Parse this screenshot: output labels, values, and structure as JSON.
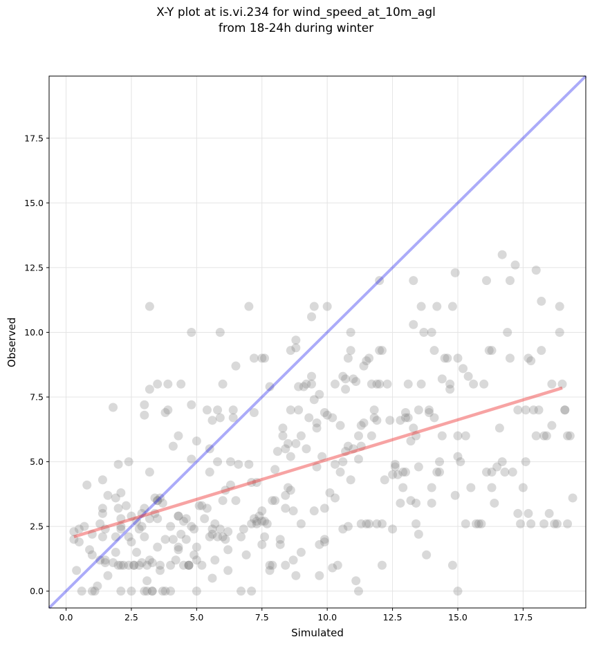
{
  "chart_data": {
    "type": "scatter",
    "title_lines": [
      "X-Y plot at is.vi.234 for wind_speed_at_10m_agl",
      "from 18-24h during winter"
    ],
    "xlabel": "Simulated",
    "ylabel": "Observed",
    "xlim": [
      -0.65,
      19.9
    ],
    "ylim": [
      -0.65,
      19.9
    ],
    "xticks": [
      0.0,
      2.5,
      5.0,
      7.5,
      10.0,
      12.5,
      15.0,
      17.5
    ],
    "yticks": [
      0.0,
      2.5,
      5.0,
      7.5,
      10.0,
      12.5,
      15.0,
      17.5
    ],
    "xtick_labels": [
      "0.0",
      "2.5",
      "5.0",
      "7.5",
      "10.0",
      "12.5",
      "15.0",
      "17.5"
    ],
    "ytick_labels": [
      "0.0",
      "2.5",
      "5.0",
      "7.5",
      "10.0",
      "12.5",
      "15.0",
      "17.5"
    ],
    "grid": true,
    "colors": {
      "points": "#808080",
      "identity_line": "#0000ee",
      "fit_line": "#ee3333"
    },
    "identity_line": {
      "x": [
        -0.65,
        19.9
      ],
      "y": [
        -0.65,
        19.9
      ]
    },
    "fit_line": {
      "x": [
        0.3,
        19.0
      ],
      "y": [
        2.1,
        7.85
      ]
    },
    "points": [
      [
        0.3,
        2.3
      ],
      [
        0.3,
        2.0
      ],
      [
        0.4,
        0.8
      ],
      [
        0.6,
        0.0
      ],
      [
        0.5,
        1.9
      ],
      [
        0.5,
        2.4
      ],
      [
        0.7,
        2.5
      ],
      [
        0.8,
        4.1
      ],
      [
        0.9,
        1.6
      ],
      [
        1.0,
        1.4
      ],
      [
        1.0,
        0.0
      ],
      [
        1.1,
        0.0
      ],
      [
        1.0,
        2.2
      ],
      [
        1.2,
        0.2
      ],
      [
        1.3,
        1.2
      ],
      [
        1.4,
        2.1
      ],
      [
        1.3,
        2.6
      ],
      [
        1.4,
        3.0
      ],
      [
        1.4,
        3.2
      ],
      [
        1.4,
        4.3
      ],
      [
        1.5,
        1.2
      ],
      [
        1.5,
        1.1
      ],
      [
        1.5,
        2.4
      ],
      [
        1.6,
        0.6
      ],
      [
        1.6,
        3.7
      ],
      [
        1.8,
        1.1
      ],
      [
        1.8,
        7.1
      ],
      [
        1.9,
        3.6
      ],
      [
        1.9,
        2.1
      ],
      [
        1.9,
        1.5
      ],
      [
        2.0,
        3.2
      ],
      [
        2.0,
        1.0
      ],
      [
        2.0,
        4.9
      ],
      [
        2.1,
        2.5
      ],
      [
        2.1,
        2.4
      ],
      [
        2.1,
        1.0
      ],
      [
        2.1,
        2.8
      ],
      [
        2.1,
        0.0
      ],
      [
        2.1,
        3.8
      ],
      [
        2.2,
        1.0
      ],
      [
        2.3,
        3.3
      ],
      [
        2.4,
        2.1
      ],
      [
        2.4,
        5.0
      ],
      [
        2.4,
        1.0
      ],
      [
        2.5,
        0.0
      ],
      [
        2.5,
        1.9
      ],
      [
        2.5,
        2.9
      ],
      [
        2.6,
        1.0
      ],
      [
        2.6,
        1.0
      ],
      [
        2.7,
        2.7
      ],
      [
        2.7,
        1.5
      ],
      [
        2.8,
        2.4
      ],
      [
        2.8,
        1.0
      ],
      [
        2.9,
        2.5
      ],
      [
        2.9,
        3.0
      ],
      [
        2.9,
        1.1
      ],
      [
        3.0,
        0.0
      ],
      [
        3.0,
        2.1
      ],
      [
        3.0,
        3.2
      ],
      [
        3.0,
        7.2
      ],
      [
        3.0,
        6.8
      ],
      [
        3.1,
        0.4
      ],
      [
        3.1,
        1.0
      ],
      [
        3.1,
        0.0
      ],
      [
        3.2,
        2.8
      ],
      [
        3.2,
        7.8
      ],
      [
        3.2,
        4.6
      ],
      [
        3.2,
        1.2
      ],
      [
        3.2,
        11.0
      ],
      [
        3.3,
        0.0
      ],
      [
        3.3,
        1.1
      ],
      [
        3.3,
        0.0
      ],
      [
        3.4,
        3.6
      ],
      [
        3.4,
        3.0
      ],
      [
        3.5,
        1.7
      ],
      [
        3.5,
        8.0
      ],
      [
        3.5,
        3.5
      ],
      [
        3.5,
        2.8
      ],
      [
        3.5,
        3.5
      ],
      [
        3.6,
        1.0
      ],
      [
        3.6,
        0.8
      ],
      [
        3.6,
        3.6
      ],
      [
        3.7,
        0.0
      ],
      [
        3.7,
        3.4
      ],
      [
        3.8,
        6.9
      ],
      [
        3.8,
        2.0
      ],
      [
        3.8,
        0.0
      ],
      [
        3.9,
        7.0
      ],
      [
        3.9,
        8.0
      ],
      [
        4.0,
        1.0
      ],
      [
        4.0,
        2.5
      ],
      [
        4.0,
        0.0
      ],
      [
        4.1,
        5.6
      ],
      [
        4.1,
        2.0
      ],
      [
        4.2,
        1.2
      ],
      [
        4.3,
        2.9
      ],
      [
        4.3,
        6.0
      ],
      [
        4.3,
        1.6
      ],
      [
        4.3,
        1.7
      ],
      [
        4.3,
        2.9
      ],
      [
        4.4,
        8.0
      ],
      [
        4.4,
        2.2
      ],
      [
        4.5,
        1.0
      ],
      [
        4.5,
        2.7
      ],
      [
        4.6,
        2.0
      ],
      [
        4.6,
        2.8
      ],
      [
        4.7,
        1.0
      ],
      [
        4.7,
        1.0
      ],
      [
        4.7,
        1.0
      ],
      [
        4.8,
        2.5
      ],
      [
        4.8,
        5.1
      ],
      [
        4.8,
        7.2
      ],
      [
        4.8,
        10.0
      ],
      [
        4.9,
        2.4
      ],
      [
        4.9,
        1.4
      ],
      [
        5.0,
        1.7
      ],
      [
        5.0,
        0.0
      ],
      [
        5.0,
        1.2
      ],
      [
        5.0,
        5.8
      ],
      [
        5.1,
        3.3
      ],
      [
        5.2,
        1.0
      ],
      [
        5.2,
        3.3
      ],
      [
        5.3,
        2.8
      ],
      [
        5.4,
        7.0
      ],
      [
        5.4,
        3.2
      ],
      [
        5.5,
        5.5
      ],
      [
        5.5,
        2.1
      ],
      [
        5.5,
        4.6
      ],
      [
        5.6,
        6.6
      ],
      [
        5.6,
        2.2
      ],
      [
        5.6,
        0.5
      ],
      [
        5.6,
        2.4
      ],
      [
        5.7,
        1.2
      ],
      [
        5.7,
        2.6
      ],
      [
        5.8,
        2.1
      ],
      [
        5.8,
        5.0
      ],
      [
        5.8,
        7.0
      ],
      [
        5.9,
        6.7
      ],
      [
        5.9,
        2.4
      ],
      [
        5.9,
        10.0
      ],
      [
        6.0,
        8.0
      ],
      [
        6.0,
        2.1
      ],
      [
        6.0,
        3.5
      ],
      [
        6.1,
        3.9
      ],
      [
        6.1,
        2.0
      ],
      [
        6.2,
        2.3
      ],
      [
        6.2,
        0.8
      ],
      [
        6.2,
        1.6
      ],
      [
        6.3,
        5.0
      ],
      [
        6.3,
        4.1
      ],
      [
        6.4,
        7.0
      ],
      [
        6.4,
        6.7
      ],
      [
        6.5,
        8.7
      ],
      [
        6.5,
        3.5
      ],
      [
        6.6,
        4.9
      ],
      [
        6.7,
        0.0
      ],
      [
        6.7,
        2.1
      ],
      [
        6.8,
        2.4
      ],
      [
        6.9,
        1.4
      ],
      [
        7.0,
        11.0
      ],
      [
        7.0,
        4.9
      ],
      [
        7.1,
        0.0
      ],
      [
        7.1,
        4.2
      ],
      [
        7.1,
        2.6
      ],
      [
        7.2,
        6.9
      ],
      [
        7.2,
        9.0
      ],
      [
        7.2,
        2.8
      ],
      [
        7.3,
        4.2
      ],
      [
        7.3,
        2.7
      ],
      [
        7.3,
        2.6
      ],
      [
        7.4,
        2.9
      ],
      [
        7.5,
        3.1
      ],
      [
        7.5,
        1.8
      ],
      [
        7.5,
        2.7
      ],
      [
        7.5,
        9.0
      ],
      [
        7.6,
        2.1
      ],
      [
        7.6,
        9.0
      ],
      [
        7.6,
        2.7
      ],
      [
        7.7,
        2.6
      ],
      [
        7.8,
        0.8
      ],
      [
        7.8,
        7.9
      ],
      [
        7.8,
        1.0
      ],
      [
        7.9,
        3.5
      ],
      [
        7.9,
        1.0
      ],
      [
        8.0,
        3.5
      ],
      [
        8.0,
        4.7
      ],
      [
        8.1,
        5.4
      ],
      [
        8.2,
        2.0
      ],
      [
        8.2,
        1.8
      ],
      [
        8.3,
        6.0
      ],
      [
        8.3,
        6.3
      ],
      [
        8.4,
        1.0
      ],
      [
        8.4,
        3.2
      ],
      [
        8.4,
        3.7
      ],
      [
        8.4,
        5.5
      ],
      [
        8.5,
        5.7
      ],
      [
        8.5,
        4.0
      ],
      [
        8.6,
        7.0
      ],
      [
        8.6,
        9.3
      ],
      [
        8.6,
        3.9
      ],
      [
        8.6,
        5.2
      ],
      [
        8.7,
        3.1
      ],
      [
        8.7,
        1.2
      ],
      [
        8.8,
        0.6
      ],
      [
        8.8,
        5.7
      ],
      [
        8.8,
        9.7
      ],
      [
        8.8,
        9.4
      ],
      [
        8.9,
        7.9
      ],
      [
        8.9,
        7.0
      ],
      [
        9.0,
        6.0
      ],
      [
        9.0,
        1.5
      ],
      [
        9.0,
        2.6
      ],
      [
        9.1,
        7.9
      ],
      [
        9.2,
        8.0
      ],
      [
        9.2,
        5.5
      ],
      [
        9.3,
        6.7
      ],
      [
        9.4,
        8.3
      ],
      [
        9.4,
        10.6
      ],
      [
        9.4,
        8.0
      ],
      [
        9.5,
        11.0
      ],
      [
        9.5,
        3.1
      ],
      [
        9.5,
        7.4
      ],
      [
        9.6,
        6.5
      ],
      [
        9.6,
        6.3
      ],
      [
        9.6,
        4.8
      ],
      [
        9.7,
        7.6
      ],
      [
        9.7,
        0.6
      ],
      [
        9.7,
        1.8
      ],
      [
        9.8,
        5.2
      ],
      [
        9.9,
        6.9
      ],
      [
        9.9,
        3.2
      ],
      [
        9.9,
        2.0
      ],
      [
        9.9,
        1.9
      ],
      [
        10.0,
        6.8
      ],
      [
        10.0,
        11.0
      ],
      [
        10.1,
        3.8
      ],
      [
        10.2,
        6.7
      ],
      [
        10.2,
        0.9
      ],
      [
        10.3,
        8.0
      ],
      [
        10.3,
        4.9
      ],
      [
        10.3,
        3.6
      ],
      [
        10.4,
        1.0
      ],
      [
        10.5,
        6.4
      ],
      [
        10.5,
        4.6
      ],
      [
        10.6,
        2.4
      ],
      [
        10.6,
        5.0
      ],
      [
        10.6,
        8.3
      ],
      [
        10.7,
        7.8
      ],
      [
        10.7,
        5.4
      ],
      [
        10.7,
        8.2
      ],
      [
        10.8,
        2.5
      ],
      [
        10.8,
        9.0
      ],
      [
        10.8,
        5.6
      ],
      [
        10.9,
        9.3
      ],
      [
        10.9,
        10.0
      ],
      [
        10.9,
        4.3
      ],
      [
        11.0,
        5.5
      ],
      [
        11.0,
        8.2
      ],
      [
        11.1,
        0.4
      ],
      [
        11.1,
        8.1
      ],
      [
        11.2,
        0.0
      ],
      [
        11.2,
        6.0
      ],
      [
        11.2,
        5.1
      ],
      [
        11.3,
        5.6
      ],
      [
        11.3,
        2.6
      ],
      [
        11.3,
        6.4
      ],
      [
        11.4,
        8.7
      ],
      [
        11.4,
        6.5
      ],
      [
        11.5,
        8.9
      ],
      [
        11.5,
        2.6
      ],
      [
        11.6,
        9.0
      ],
      [
        11.6,
        2.6
      ],
      [
        11.7,
        6.0
      ],
      [
        11.7,
        8.0
      ],
      [
        11.8,
        7.0
      ],
      [
        11.8,
        6.7
      ],
      [
        11.9,
        2.6
      ],
      [
        11.9,
        8.0
      ],
      [
        11.9,
        6.6
      ],
      [
        12.0,
        9.3
      ],
      [
        12.0,
        12.0
      ],
      [
        12.0,
        8.0
      ],
      [
        12.1,
        1.0
      ],
      [
        12.1,
        9.3
      ],
      [
        12.1,
        2.6
      ],
      [
        12.2,
        4.3
      ],
      [
        12.3,
        8.0
      ],
      [
        12.4,
        6.6
      ],
      [
        12.5,
        4.5
      ],
      [
        12.5,
        2.4
      ],
      [
        12.6,
        4.9
      ],
      [
        12.6,
        4.8
      ],
      [
        12.7,
        4.5
      ],
      [
        12.8,
        3.4
      ],
      [
        12.8,
        6.6
      ],
      [
        12.9,
        4.0
      ],
      [
        12.9,
        4.6
      ],
      [
        13.0,
        6.9
      ],
      [
        13.0,
        6.7
      ],
      [
        13.0,
        4.6
      ],
      [
        13.1,
        6.7
      ],
      [
        13.1,
        8.0
      ],
      [
        13.2,
        3.5
      ],
      [
        13.2,
        5.8
      ],
      [
        13.3,
        12.0
      ],
      [
        13.3,
        6.3
      ],
      [
        13.3,
        10.3
      ],
      [
        13.4,
        2.6
      ],
      [
        13.4,
        6.0
      ],
      [
        13.4,
        3.4
      ],
      [
        13.5,
        7.0
      ],
      [
        13.5,
        4.8
      ],
      [
        13.5,
        2.2
      ],
      [
        13.6,
        11.0
      ],
      [
        13.6,
        8.0
      ],
      [
        13.7,
        10.0
      ],
      [
        13.8,
        1.4
      ],
      [
        13.9,
        7.0
      ],
      [
        13.9,
        6.9
      ],
      [
        14.0,
        10.0
      ],
      [
        14.0,
        3.4
      ],
      [
        14.0,
        4.0
      ],
      [
        14.1,
        6.7
      ],
      [
        14.1,
        9.3
      ],
      [
        14.2,
        4.6
      ],
      [
        14.2,
        11.0
      ],
      [
        14.3,
        4.6
      ],
      [
        14.3,
        5.0
      ],
      [
        14.4,
        8.2
      ],
      [
        14.4,
        6.0
      ],
      [
        14.5,
        9.0
      ],
      [
        14.6,
        9.0
      ],
      [
        14.7,
        8.0
      ],
      [
        14.7,
        7.8
      ],
      [
        14.8,
        1.0
      ],
      [
        14.8,
        11.0
      ],
      [
        14.9,
        12.3
      ],
      [
        14.9,
        3.7
      ],
      [
        15.0,
        5.2
      ],
      [
        15.0,
        0.0
      ],
      [
        15.0,
        9.0
      ],
      [
        15.0,
        6.0
      ],
      [
        15.1,
        5.0
      ],
      [
        15.2,
        8.6
      ],
      [
        15.3,
        2.6
      ],
      [
        15.3,
        6.0
      ],
      [
        15.4,
        8.3
      ],
      [
        15.5,
        4.0
      ],
      [
        15.6,
        8.0
      ],
      [
        15.7,
        2.6
      ],
      [
        15.8,
        2.6
      ],
      [
        15.9,
        2.6
      ],
      [
        16.0,
        8.0
      ],
      [
        16.1,
        12.0
      ],
      [
        16.1,
        4.6
      ],
      [
        16.2,
        9.3
      ],
      [
        16.3,
        9.3
      ],
      [
        16.3,
        4.6
      ],
      [
        16.3,
        4.0
      ],
      [
        16.4,
        3.4
      ],
      [
        16.5,
        4.8
      ],
      [
        16.6,
        6.3
      ],
      [
        16.7,
        13.0
      ],
      [
        16.7,
        5.0
      ],
      [
        16.8,
        4.6
      ],
      [
        16.9,
        10.0
      ],
      [
        17.0,
        12.0
      ],
      [
        17.0,
        9.0
      ],
      [
        17.1,
        4.6
      ],
      [
        17.2,
        12.6
      ],
      [
        17.3,
        7.0
      ],
      [
        17.3,
        3.0
      ],
      [
        17.4,
        2.6
      ],
      [
        17.5,
        4.0
      ],
      [
        17.6,
        5.0
      ],
      [
        17.6,
        7.0
      ],
      [
        17.7,
        3.0
      ],
      [
        17.7,
        9.0
      ],
      [
        17.8,
        8.9
      ],
      [
        17.8,
        2.6
      ],
      [
        17.9,
        7.0
      ],
      [
        18.0,
        12.4
      ],
      [
        18.0,
        6.0
      ],
      [
        18.1,
        7.0
      ],
      [
        18.2,
        11.2
      ],
      [
        18.2,
        9.3
      ],
      [
        18.3,
        6.0
      ],
      [
        18.3,
        2.6
      ],
      [
        18.4,
        6.0
      ],
      [
        18.5,
        3.0
      ],
      [
        18.6,
        6.4
      ],
      [
        18.6,
        8.0
      ],
      [
        18.7,
        2.6
      ],
      [
        18.8,
        2.6
      ],
      [
        18.9,
        11.0
      ],
      [
        18.9,
        10.0
      ],
      [
        19.0,
        8.0
      ],
      [
        19.1,
        7.0
      ],
      [
        19.1,
        7.0
      ],
      [
        19.2,
        6.0
      ],
      [
        19.2,
        2.6
      ],
      [
        19.3,
        6.0
      ],
      [
        19.4,
        3.6
      ]
    ]
  }
}
